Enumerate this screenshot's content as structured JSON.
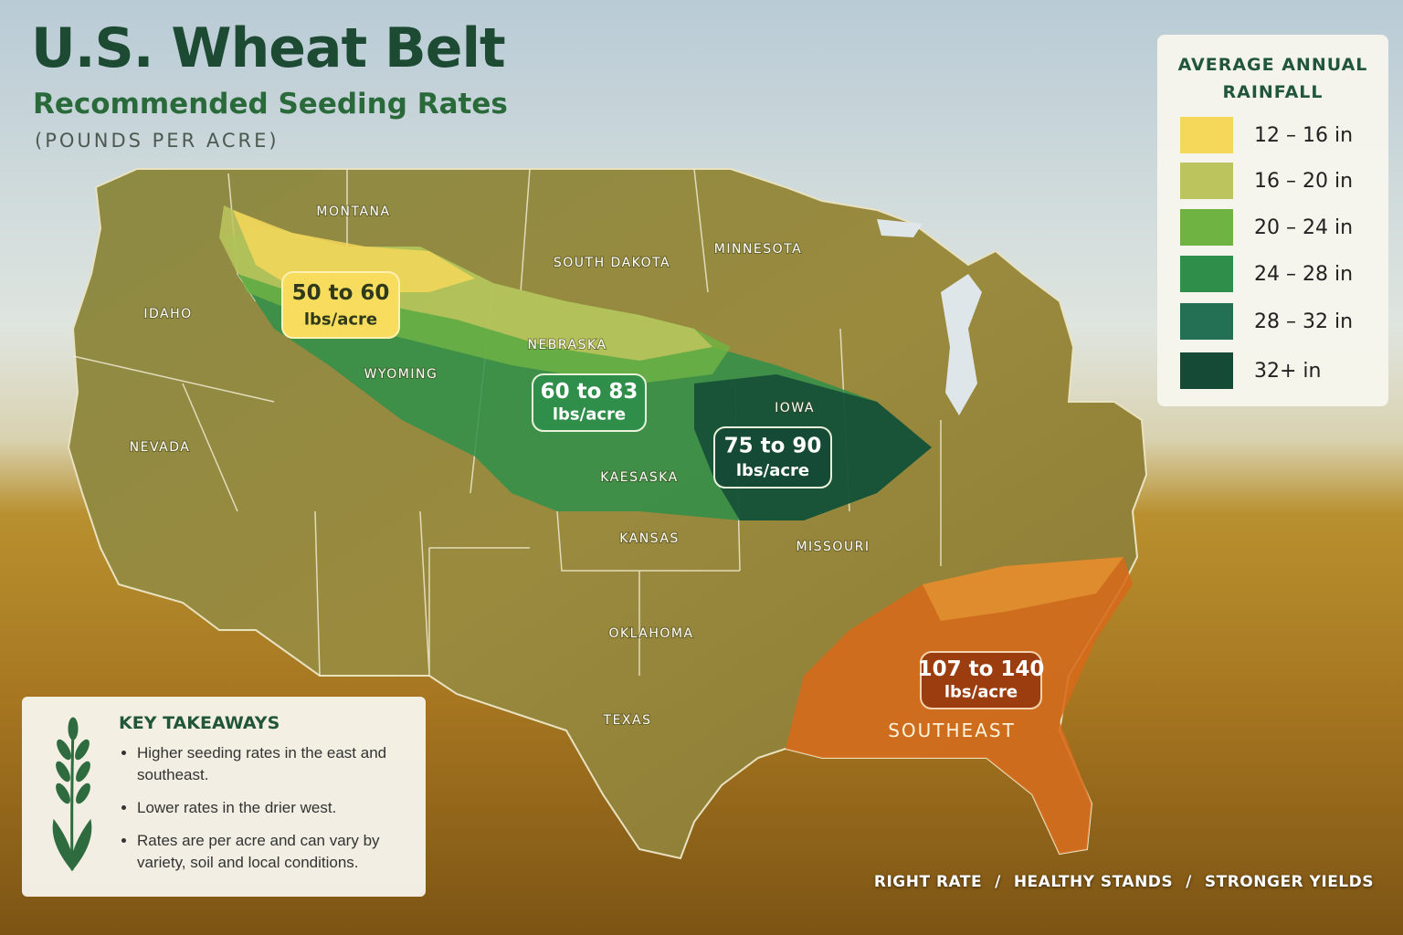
{
  "header": {
    "title": "U.S. Wheat Belt",
    "subtitle": "Recommended Seeding Rates",
    "units": "(POUNDS PER ACRE)"
  },
  "map": {
    "state_labels": [
      "MONTANA",
      "IDAHO",
      "WYOMING",
      "NEVADA",
      "SOUTH DAKOTA",
      "MINNESOTA",
      "NEBRASKA",
      "IOWA",
      "KAESASKA",
      "KANSAS",
      "MISSOURI",
      "OKLAHOMA",
      "TEXAS"
    ],
    "region_label": "SOUTHEAST",
    "callouts": [
      {
        "range": "50 to 60",
        "unit": "lbs/acre"
      },
      {
        "range": "60 to 83",
        "unit": "lbs/acre"
      },
      {
        "range": "75 to 90",
        "unit": "lbs/acre"
      },
      {
        "range": "107 to 140",
        "unit": "lbs/acre"
      }
    ]
  },
  "legend": {
    "title": "AVERAGE ANNUAL RAINFALL",
    "items": [
      {
        "label": "12 – 16 in",
        "color": "#f5d75a"
      },
      {
        "label": "16 – 20 in",
        "color": "#bcc45e"
      },
      {
        "label": "20 – 24 in",
        "color": "#6fb443"
      },
      {
        "label": "24 – 28 in",
        "color": "#2f8f4a"
      },
      {
        "label": "28 – 32 in",
        "color": "#237055"
      },
      {
        "label": "32+ in",
        "color": "#144a36"
      }
    ]
  },
  "takeaways": {
    "title": "KEY TAKEAWAYS",
    "bullets": [
      "Higher seeding rates in the east and southeast.",
      "Lower rates in the drier west.",
      "Rates are per acre and can vary by variety, soil and local conditions."
    ]
  },
  "footer": {
    "items": [
      "RIGHT RATE",
      "HEALTHY STANDS",
      "STRONGER YIELDS"
    ],
    "separator": "/"
  }
}
